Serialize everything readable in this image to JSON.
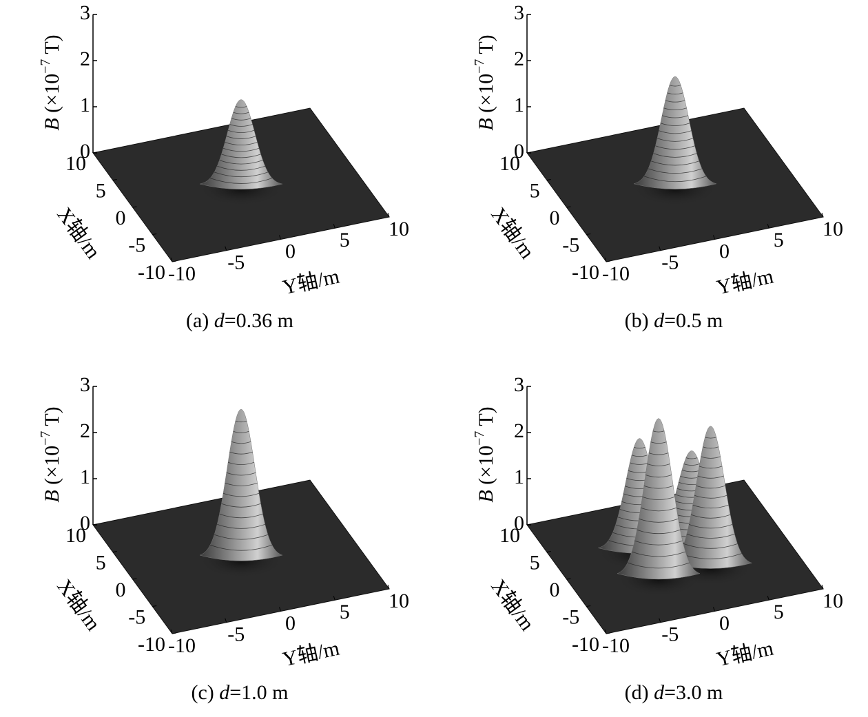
{
  "chart_data": [
    {
      "type": "surface",
      "caption": [
        "(a) ",
        "d",
        "=0.36 m"
      ],
      "zlabel": [
        "B",
        " (×10",
        "−7",
        " T)"
      ],
      "xlabel": "X轴/m",
      "ylabel": "Y轴/m",
      "xlim": [
        -10,
        10
      ],
      "ylim": [
        -10,
        10
      ],
      "zlim": [
        0,
        3
      ],
      "xticks": [
        -10,
        -5,
        0,
        5,
        10
      ],
      "yticks": [
        -10,
        -5,
        0,
        5,
        10
      ],
      "zticks": [
        0,
        1,
        2,
        3
      ],
      "peaks": [
        {
          "x": 0,
          "y": 0,
          "z": 1.85
        }
      ],
      "color": "#dcdcdc"
    },
    {
      "type": "surface",
      "caption": [
        "(b) ",
        "d",
        "=0.5 m"
      ],
      "zlabel": [
        "B",
        " (×10",
        "−7",
        " T)"
      ],
      "xlabel": "X轴/m",
      "ylabel": "Y轴/m",
      "xlim": [
        -10,
        10
      ],
      "ylim": [
        -10,
        10
      ],
      "zlim": [
        0,
        3
      ],
      "xticks": [
        -10,
        -5,
        0,
        5,
        10
      ],
      "yticks": [
        -10,
        -5,
        0,
        5,
        10
      ],
      "zticks": [
        0,
        1,
        2,
        3
      ],
      "peaks": [
        {
          "x": 0,
          "y": 0,
          "z": 2.35
        }
      ],
      "color": "#dcdcdc"
    },
    {
      "type": "surface",
      "caption": [
        "(c) ",
        "d",
        "=1.0 m"
      ],
      "zlabel": [
        "B",
        " (×10",
        "−7",
        " T)"
      ],
      "xlabel": "X轴/m",
      "ylabel": "Y轴/m",
      "xlim": [
        -10,
        10
      ],
      "ylim": [
        -10,
        10
      ],
      "zlim": [
        0,
        3
      ],
      "xticks": [
        -10,
        -5,
        0,
        5,
        10
      ],
      "yticks": [
        -10,
        -5,
        0,
        5,
        10
      ],
      "zticks": [
        0,
        1,
        2,
        3
      ],
      "peaks": [
        {
          "x": 0,
          "y": 0,
          "z": 3.2
        }
      ],
      "color": "#dcdcdc"
    },
    {
      "type": "surface",
      "caption": [
        "(d) ",
        "d",
        "=3.0 m"
      ],
      "zlabel": [
        "B",
        " (×10",
        "−7",
        " T)"
      ],
      "xlabel": "X轴/m",
      "ylabel": "Y轴/m",
      "xlim": [
        -10,
        10
      ],
      "ylim": [
        -10,
        10
      ],
      "zlim": [
        0,
        3
      ],
      "xticks": [
        -10,
        -5,
        0,
        5,
        10
      ],
      "yticks": [
        -10,
        -5,
        0,
        5,
        10
      ],
      "zticks": [
        0,
        1,
        2,
        3
      ],
      "peaks": [
        {
          "x": 2.4,
          "y": -2.4,
          "z": 2.4
        },
        {
          "x": -2.4,
          "y": -2.4,
          "z": 3.4
        },
        {
          "x": 2.4,
          "y": 2.4,
          "z": 1.9
        },
        {
          "x": -2.4,
          "y": 2.4,
          "z": 3.0
        }
      ],
      "color": "#dcdcdc"
    }
  ]
}
